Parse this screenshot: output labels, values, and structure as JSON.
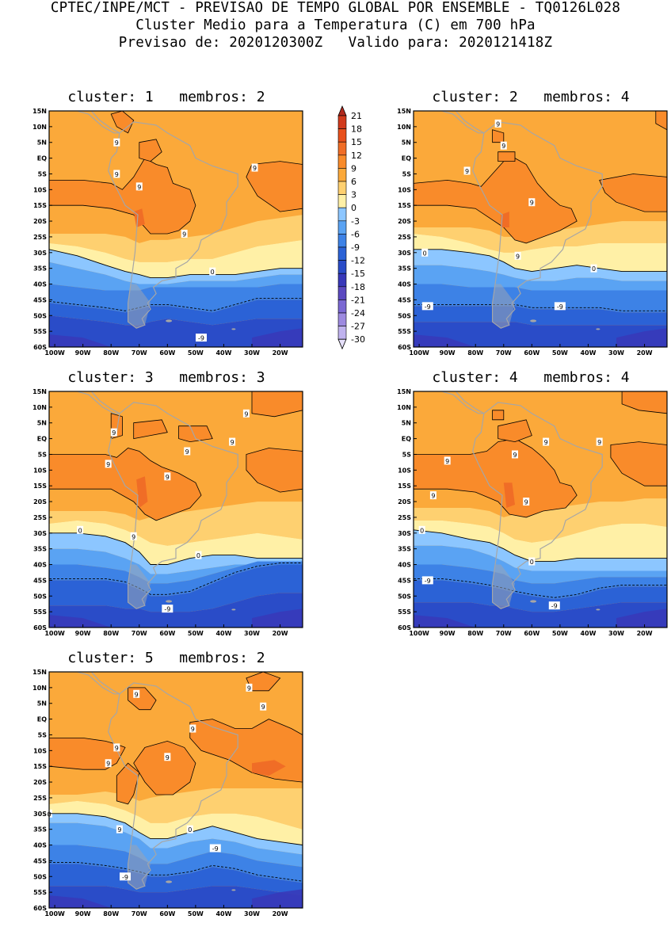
{
  "header": {
    "line1": "CPTEC/INPE/MCT - PREVISAO DE TEMPO GLOBAL POR ENSEMBLE - TQ0126L028",
    "line2": "Cluster Medio para a Temperatura (C) em 700 hPa",
    "line3": "Previsao de: 2020120300Z   Valido para: 2020121418Z"
  },
  "lat_ticks": [
    "15N",
    "10N",
    "5N",
    "EQ",
    "5S",
    "10S",
    "15S",
    "20S",
    "25S",
    "30S",
    "35S",
    "40S",
    "45S",
    "50S",
    "55S",
    "60S"
  ],
  "lon_ticks": [
    "100W",
    "90W",
    "80W",
    "70W",
    "60W",
    "50W",
    "40W",
    "30W",
    "20W"
  ],
  "colorbar": {
    "labels": [
      "21",
      "18",
      "15",
      "12",
      "9",
      "6",
      "3",
      "0",
      "-3",
      "-6",
      "-9",
      "-12",
      "-15",
      "-18",
      "-21",
      "-24",
      "-27",
      "-30"
    ],
    "colors": [
      "#b02a1e",
      "#d13a1c",
      "#e8501c",
      "#f06d26",
      "#f98b2a",
      "#fba93a",
      "#fed070",
      "#fff0a6",
      "#8cc6ff",
      "#5aa3f3",
      "#3d82e6",
      "#2b62d6",
      "#2a4cc8",
      "#3838b9",
      "#5b49c0",
      "#7b68d3",
      "#9d8ae0",
      "#bfb2ee",
      "#e6e0fa"
    ]
  },
  "clusters": [
    {
      "title": "cluster: 1   membros: 2",
      "labels": [
        {
          "text": "9",
          "lon": -78,
          "lat": 5
        },
        {
          "text": "9",
          "lon": -78,
          "lat": -5
        },
        {
          "text": "9",
          "lon": -70,
          "lat": -9
        },
        {
          "text": "9",
          "lon": -54,
          "lat": -24
        },
        {
          "text": "9",
          "lon": -29,
          "lat": -3
        },
        {
          "text": "0",
          "lon": -44,
          "lat": -36
        },
        {
          "text": "-9",
          "lon": -48,
          "lat": -57
        }
      ]
    },
    {
      "title": "cluster: 2   membros: 4",
      "labels": [
        {
          "text": "9",
          "lon": -72,
          "lat": 11
        },
        {
          "text": "9",
          "lon": -70,
          "lat": 4
        },
        {
          "text": "9",
          "lon": -83,
          "lat": -4
        },
        {
          "text": "9",
          "lon": -60,
          "lat": -14
        },
        {
          "text": "9",
          "lon": -65,
          "lat": -31
        },
        {
          "text": "0",
          "lon": -98,
          "lat": -30
        },
        {
          "text": "0",
          "lon": -38,
          "lat": -35
        },
        {
          "text": "-9",
          "lon": -97,
          "lat": -47
        },
        {
          "text": "-9",
          "lon": -50,
          "lat": -47
        }
      ]
    },
    {
      "title": "cluster: 3   membros: 3",
      "labels": [
        {
          "text": "9",
          "lon": -79,
          "lat": 2
        },
        {
          "text": "9",
          "lon": -32,
          "lat": 8
        },
        {
          "text": "9",
          "lon": -37,
          "lat": -1
        },
        {
          "text": "9",
          "lon": -53,
          "lat": -4
        },
        {
          "text": "9",
          "lon": -81,
          "lat": -8
        },
        {
          "text": "9",
          "lon": -60,
          "lat": -12
        },
        {
          "text": "9",
          "lon": -72,
          "lat": -31
        },
        {
          "text": "0",
          "lon": -91,
          "lat": -29
        },
        {
          "text": "0",
          "lon": -49,
          "lat": -37
        },
        {
          "text": "-9",
          "lon": -60,
          "lat": -54
        }
      ]
    },
    {
      "title": "cluster: 4   membros: 4",
      "labels": [
        {
          "text": "9",
          "lon": -90,
          "lat": -7
        },
        {
          "text": "9",
          "lon": -66,
          "lat": -5
        },
        {
          "text": "9",
          "lon": -55,
          "lat": -1
        },
        {
          "text": "9",
          "lon": -36,
          "lat": -1
        },
        {
          "text": "9",
          "lon": -95,
          "lat": -18
        },
        {
          "text": "9",
          "lon": -62,
          "lat": -20
        },
        {
          "text": "0",
          "lon": -99,
          "lat": -29
        },
        {
          "text": "0",
          "lon": -60,
          "lat": -39
        },
        {
          "text": "-9",
          "lon": -97,
          "lat": -45
        },
        {
          "text": "-9",
          "lon": -52,
          "lat": -53
        }
      ]
    },
    {
      "title": "cluster: 5   membros: 2",
      "labels": [
        {
          "text": "9",
          "lon": -71,
          "lat": 8
        },
        {
          "text": "9",
          "lon": -31,
          "lat": 10
        },
        {
          "text": "9",
          "lon": -26,
          "lat": 4
        },
        {
          "text": "9",
          "lon": -51,
          "lat": -3
        },
        {
          "text": "9",
          "lon": -78,
          "lat": -9
        },
        {
          "text": "9",
          "lon": -81,
          "lat": -14
        },
        {
          "text": "9",
          "lon": -60,
          "lat": -12
        },
        {
          "text": "9",
          "lon": -77,
          "lat": -35
        },
        {
          "text": "0",
          "lon": -102,
          "lat": -30
        },
        {
          "text": "0",
          "lon": -52,
          "lat": -35
        },
        {
          "text": "-9",
          "lon": -43,
          "lat": -41
        },
        {
          "text": "-9",
          "lon": -75,
          "lat": -50
        }
      ]
    }
  ]
}
